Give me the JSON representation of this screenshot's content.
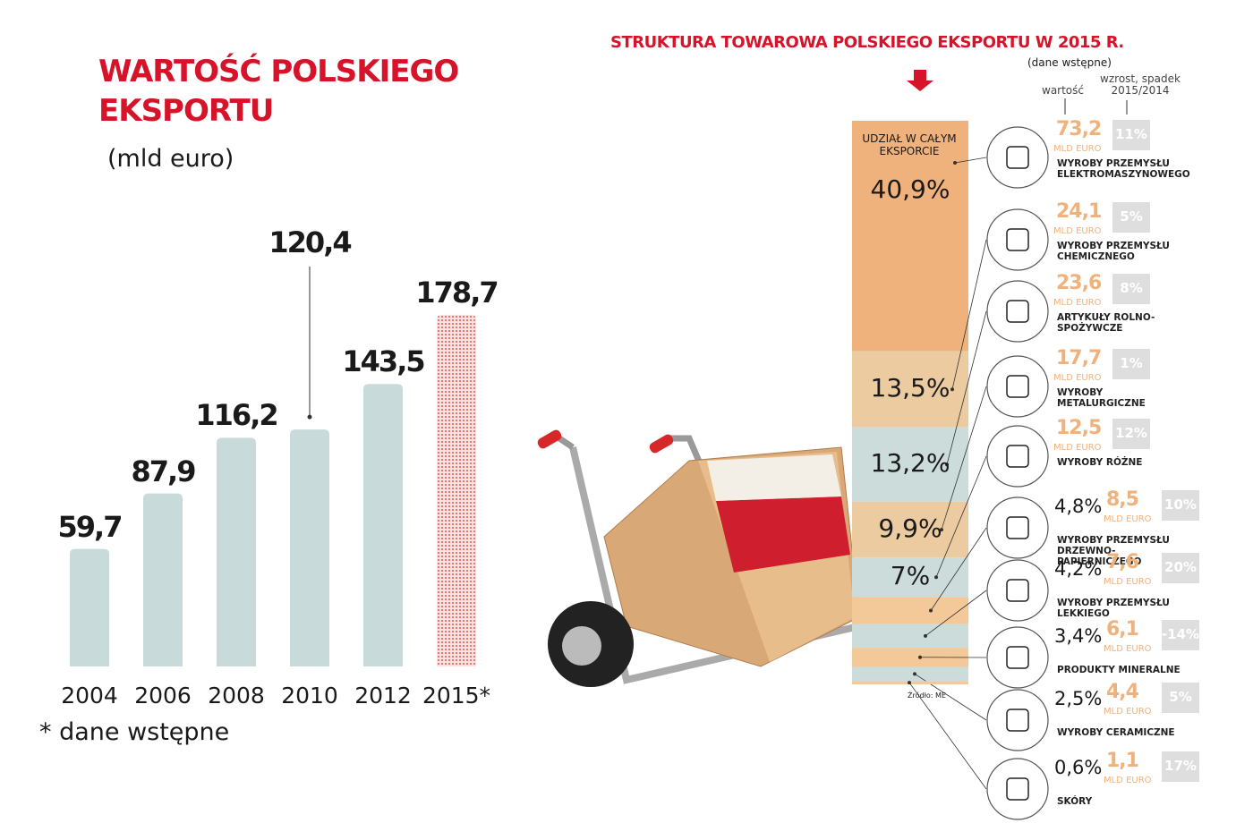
{
  "chart_data": [
    {
      "type": "bar",
      "title": "WARTOŚĆ POLSKIEGO EKSPORTU",
      "subtitle": "(mld euro)",
      "categories": [
        "2004",
        "2006",
        "2008",
        "2010",
        "2012",
        "2015*"
      ],
      "values": [
        59.7,
        87.9,
        116.2,
        120.4,
        143.5,
        178.7
      ],
      "value_labels": [
        "59,7",
        "87,9",
        "116,2",
        "120,4",
        "143,5",
        "178,7"
      ],
      "color": "#c9dadb",
      "preliminary_color": "#e0706c",
      "note": "* dane wstępne"
    },
    {
      "type": "stacked-column",
      "title": "STRUKTURA TOWAROWA POLSKIEGO EKSPORTU W 2015 R.",
      "subtitle": "(dane wstępne)",
      "column_label": "UDZIAŁ W CAŁYM EKSPORCIE",
      "value_header": "wartość",
      "change_header": "wzrost, spadek 2015/2014",
      "unit": "MLD EURO",
      "source": "Źródło: ME",
      "categories": [
        "WYROBY PRZEMYSŁU ELEKTROMASZYNOWEGO",
        "WYROBY PRZEMYSŁU CHEMICZNEGO",
        "ARTYKUŁY ROLNO-SPOŻYWCZE",
        "WYROBY METALURGICZNE",
        "WYROBY RÓŻNE",
        "WYROBY PRZEMYSŁU DRZEWNO-PAPIERNICZEGO",
        "WYROBY PRZEMYSŁU LEKKIEGO",
        "PRODUKTY MINERALNE",
        "WYROBY CERAMICZNE",
        "SKÓRY"
      ],
      "shares": [
        40.9,
        13.5,
        13.2,
        9.9,
        7,
        4.8,
        4.2,
        3.4,
        2.5,
        0.6
      ],
      "share_labels": [
        "40,9%",
        "13,5%",
        "13,2%",
        "9,9%",
        "7%",
        "4,8%",
        "4,2%",
        "3,4%",
        "2,5%",
        "0,6%"
      ],
      "values": [
        73.2,
        24.1,
        23.6,
        17.7,
        12.5,
        8.5,
        7.6,
        6.1,
        4.4,
        1.1
      ],
      "value_labels": [
        "73,2",
        "24,1",
        "23,6",
        "17,7",
        "12,5",
        "8,5",
        "7,6",
        "6,1",
        "4,4",
        "1,1"
      ],
      "changes": [
        11,
        5,
        8,
        1,
        12,
        10,
        20,
        -14,
        5,
        17
      ],
      "change_labels": [
        "11%",
        "5%",
        "8%",
        "1%",
        "12%",
        "10%",
        "20%",
        "-14%",
        "5%",
        "17%"
      ],
      "colors": [
        "#efb27c",
        "#ebcb9f",
        "#ccdcdb",
        "#ebcb9f",
        "#ccdcdb",
        "#f3c99a",
        "#ccdcdb",
        "#f3c99a",
        "#ccdcdb",
        "#f3c99a"
      ]
    }
  ]
}
